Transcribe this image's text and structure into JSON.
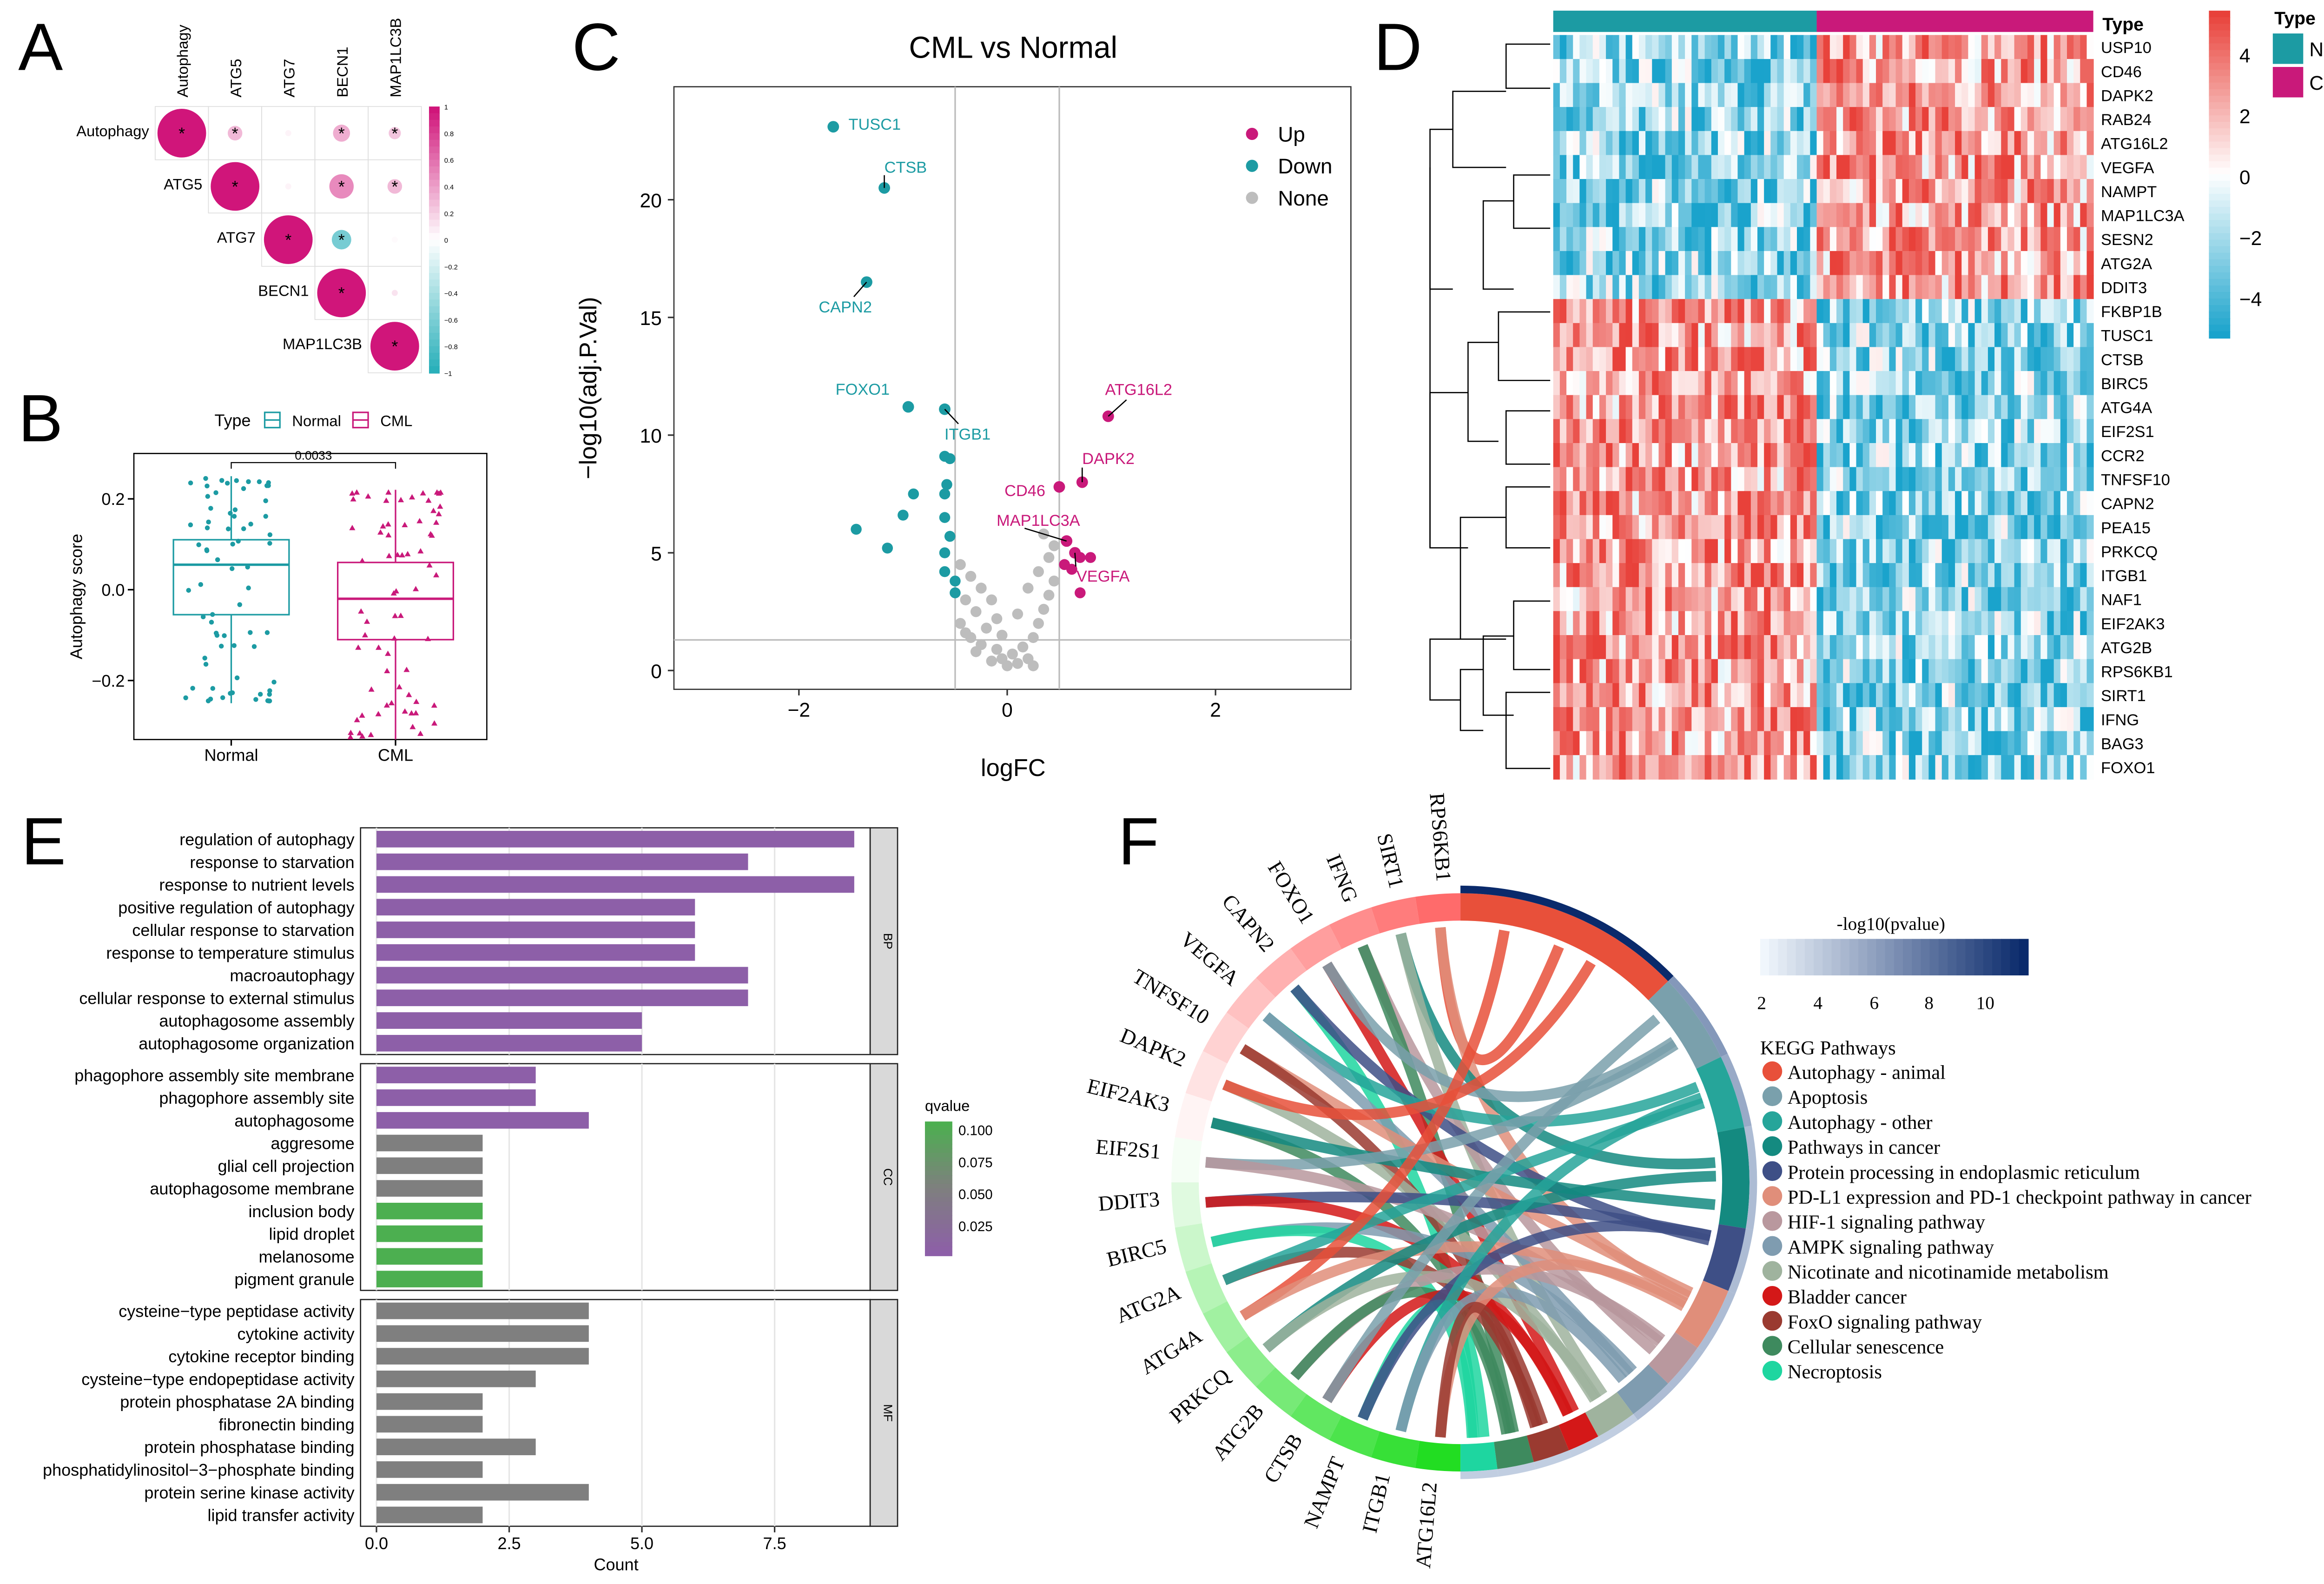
{
  "colors": {
    "normal": "#1c9ba3",
    "cml": "#c9197a",
    "none": "#bdbdbd",
    "bar_purple": "#8d5fa8",
    "bar_grey": "#7f7f7f",
    "bar_green": "#4caf50"
  },
  "panel_labels": [
    "A",
    "B",
    "C",
    "D",
    "E",
    "F"
  ],
  "chart_data": [
    {
      "panel": "A",
      "type": "heatmap",
      "title": "",
      "variables": [
        "Autophagy",
        "ATG5",
        "ATG7",
        "BECN1",
        "MAP1LC3B"
      ],
      "correlations": [
        [
          1,
          0.3,
          0.05,
          0.35,
          0.25
        ],
        [
          0.3,
          1,
          0.05,
          0.5,
          0.3
        ],
        [
          0.05,
          0.05,
          1,
          -0.4,
          0.02
        ],
        [
          0.35,
          0.5,
          -0.4,
          1,
          0.12
        ],
        [
          0.25,
          0.3,
          0.02,
          0.12,
          1
        ]
      ],
      "significant": [
        [
          1,
          1,
          0,
          1,
          1
        ],
        [
          1,
          1,
          0,
          1,
          1
        ],
        [
          0,
          0,
          1,
          1,
          0
        ],
        [
          1,
          1,
          1,
          1,
          0
        ],
        [
          1,
          1,
          0,
          0,
          1
        ]
      ],
      "colorbar_ticks": [
        "1",
        "0.8",
        "0.6",
        "0.4",
        "0.2",
        "0",
        "−0.2",
        "−0.4",
        "−0.6",
        "−0.8",
        "−1"
      ],
      "star": "*"
    },
    {
      "panel": "B",
      "type": "box",
      "legend_title": "Type",
      "legend": [
        "Normal",
        "CML"
      ],
      "categories": [
        "Normal",
        "CML"
      ],
      "ylabel": "Autophagy score",
      "yticks": [
        0.2,
        0.0,
        -0.2
      ],
      "ytick_labels": [
        "0.2",
        "0.0",
        "−0.2"
      ],
      "ylim": [
        -0.33,
        0.3
      ],
      "pvalue": "0.0033",
      "boxes": [
        {
          "name": "Normal",
          "min": -0.25,
          "q1": -0.055,
          "median": 0.055,
          "q3": 0.11,
          "max": 0.25
        },
        {
          "name": "CML",
          "min": -0.33,
          "q1": -0.11,
          "median": -0.02,
          "q3": 0.06,
          "max": 0.22
        }
      ]
    },
    {
      "panel": "C",
      "type": "scatter",
      "title": "CML vs Normal",
      "xlabel": "logFC",
      "ylabel": "−log10(adj.P.Val)",
      "xlim": [
        -3.2,
        3.3
      ],
      "ylim": [
        -0.8,
        24.8
      ],
      "xticks": [
        -2,
        0,
        2
      ],
      "xtick_labels": [
        "−2",
        "0",
        "2"
      ],
      "yticks": [
        0,
        5,
        10,
        15,
        20
      ],
      "ytick_labels": [
        "0",
        "5",
        "10",
        "15",
        "20"
      ],
      "vlines": [
        -0.5,
        0.5
      ],
      "hline": 1.3,
      "legend": [
        {
          "name": "Up",
          "color": "#c9197a"
        },
        {
          "name": "Down",
          "color": "#1c9ba3"
        },
        {
          "name": "None",
          "color": "#bdbdbd"
        }
      ],
      "labeled_points": [
        {
          "label": "TUSC1",
          "x": -1.67,
          "y": 23.1,
          "group": "Down"
        },
        {
          "label": "CTSB",
          "x": -1.18,
          "y": 20.5,
          "group": "Down"
        },
        {
          "label": "CAPN2",
          "x": -1.35,
          "y": 16.5,
          "group": "Down"
        },
        {
          "label": "FOXO1",
          "x": -0.95,
          "y": 11.2,
          "group": "Down"
        },
        {
          "label": "ITGB1",
          "x": -0.6,
          "y": 11.1,
          "group": "Down"
        },
        {
          "label": "ATG16L2",
          "x": 0.97,
          "y": 10.8,
          "group": "Up"
        },
        {
          "label": "CD46",
          "x": 0.5,
          "y": 7.8,
          "group": "Up"
        },
        {
          "label": "DAPK2",
          "x": 0.72,
          "y": 8.0,
          "group": "Up"
        },
        {
          "label": "MAP1LC3A",
          "x": 0.57,
          "y": 5.5,
          "group": "Up"
        },
        {
          "label": "VEGFA",
          "x": 0.65,
          "y": 5.0,
          "group": "Up"
        }
      ],
      "points": [
        {
          "x": -0.6,
          "y": 9.1,
          "group": "Down"
        },
        {
          "x": -0.55,
          "y": 9.0,
          "group": "Down"
        },
        {
          "x": -0.58,
          "y": 7.9,
          "group": "Down"
        },
        {
          "x": -0.6,
          "y": 7.5,
          "group": "Down"
        },
        {
          "x": -0.9,
          "y": 7.5,
          "group": "Down"
        },
        {
          "x": -1.0,
          "y": 6.6,
          "group": "Down"
        },
        {
          "x": -0.6,
          "y": 6.5,
          "group": "Down"
        },
        {
          "x": -1.45,
          "y": 6.0,
          "group": "Down"
        },
        {
          "x": -1.15,
          "y": 5.2,
          "group": "Down"
        },
        {
          "x": -0.55,
          "y": 5.7,
          "group": "Down"
        },
        {
          "x": -0.6,
          "y": 5.0,
          "group": "Down"
        },
        {
          "x": -0.6,
          "y": 4.2,
          "group": "Down"
        },
        {
          "x": -0.5,
          "y": 3.8,
          "group": "Down"
        },
        {
          "x": -0.5,
          "y": 3.3,
          "group": "Down"
        },
        {
          "x": 0.7,
          "y": 4.8,
          "group": "Up"
        },
        {
          "x": 0.62,
          "y": 4.3,
          "group": "Up"
        },
        {
          "x": 0.8,
          "y": 4.8,
          "group": "Up"
        },
        {
          "x": 0.7,
          "y": 3.3,
          "group": "Up"
        },
        {
          "x": 0.55,
          "y": 4.5,
          "group": "Up"
        },
        {
          "x": -0.45,
          "y": 4.5,
          "group": "None"
        },
        {
          "x": -0.35,
          "y": 4.0,
          "group": "None"
        },
        {
          "x": -0.25,
          "y": 3.5,
          "group": "None"
        },
        {
          "x": -0.4,
          "y": 3.0,
          "group": "None"
        },
        {
          "x": -0.15,
          "y": 3.0,
          "group": "None"
        },
        {
          "x": -0.3,
          "y": 2.5,
          "group": "None"
        },
        {
          "x": -0.1,
          "y": 2.2,
          "group": "None"
        },
        {
          "x": -0.45,
          "y": 2.0,
          "group": "None"
        },
        {
          "x": -0.2,
          "y": 1.8,
          "group": "None"
        },
        {
          "x": -0.05,
          "y": 1.5,
          "group": "None"
        },
        {
          "x": -0.35,
          "y": 1.4,
          "group": "None"
        },
        {
          "x": -0.25,
          "y": 1.1,
          "group": "None"
        },
        {
          "x": -0.1,
          "y": 0.9,
          "group": "None"
        },
        {
          "x": 0.05,
          "y": 0.7,
          "group": "None"
        },
        {
          "x": -0.05,
          "y": 0.5,
          "group": "None"
        },
        {
          "x": 0.1,
          "y": 0.3,
          "group": "None"
        },
        {
          "x": 0.2,
          "y": 0.5,
          "group": "None"
        },
        {
          "x": 0.15,
          "y": 1.0,
          "group": "None"
        },
        {
          "x": 0.25,
          "y": 1.4,
          "group": "None"
        },
        {
          "x": 0.3,
          "y": 2.0,
          "group": "None"
        },
        {
          "x": 0.35,
          "y": 2.6,
          "group": "None"
        },
        {
          "x": 0.4,
          "y": 3.2,
          "group": "None"
        },
        {
          "x": 0.45,
          "y": 3.8,
          "group": "None"
        },
        {
          "x": 0.3,
          "y": 4.2,
          "group": "None"
        },
        {
          "x": 0.4,
          "y": 4.8,
          "group": "None"
        },
        {
          "x": 0.45,
          "y": 5.3,
          "group": "None"
        },
        {
          "x": 0.35,
          "y": 5.8,
          "group": "None"
        },
        {
          "x": 0.2,
          "y": 3.5,
          "group": "None"
        },
        {
          "x": 0.1,
          "y": 2.4,
          "group": "None"
        },
        {
          "x": -0.15,
          "y": 0.4,
          "group": "None"
        },
        {
          "x": 0.0,
          "y": 0.2,
          "group": "None"
        },
        {
          "x": -0.3,
          "y": 0.8,
          "group": "None"
        },
        {
          "x": 0.25,
          "y": 0.2,
          "group": "None"
        },
        {
          "x": -0.4,
          "y": 1.6,
          "group": "None"
        }
      ]
    },
    {
      "panel": "D",
      "type": "heatmap",
      "annotation_title": "Type",
      "legend": [
        {
          "name": "Normal",
          "color": "#1c9ba3"
        },
        {
          "name": "CML",
          "color": "#c9197a"
        }
      ],
      "colorbar_ticks": [
        "4",
        "2",
        "0",
        "−2",
        "−4"
      ],
      "genes": [
        "USP10",
        "CD46",
        "DAPK2",
        "RAB24",
        "ATG16L2",
        "VEGFA",
        "NAMPT",
        "MAP1LC3A",
        "SESN2",
        "ATG2A",
        "DDIT3",
        "FKBP1B",
        "TUSC1",
        "CTSB",
        "BIRC5",
        "ATG4A",
        "EIF2S1",
        "CCR2",
        "TNFSF10",
        "CAPN2",
        "PEA15",
        "PRKCQ",
        "ITGB1",
        "NAF1",
        "EIF2AK3",
        "ATG2B",
        "RPS6KB1",
        "SIRT1",
        "IFNG",
        "BAG3",
        "FOXO1"
      ],
      "n_normal": 40,
      "n_cml": 42
    },
    {
      "panel": "E",
      "type": "bar",
      "xlabel": "Count",
      "xticks": [
        0,
        2.5,
        5,
        7.5
      ],
      "xtick_labels": [
        "0.0",
        "2.5",
        "5.0",
        "7.5"
      ],
      "xlim": [
        -0.3,
        9.3
      ],
      "legend_title": "qvalue",
      "legend_ticks": [
        "0.100",
        "0.075",
        "0.050",
        "0.025"
      ],
      "facets": [
        {
          "name": "BP",
          "terms": [
            {
              "label": "regulation of autophagy",
              "value": 9,
              "q": 0.01
            },
            {
              "label": "response to starvation",
              "value": 7,
              "q": 0.01
            },
            {
              "label": "response to nutrient levels",
              "value": 9,
              "q": 0.01
            },
            {
              "label": "positive regulation of autophagy",
              "value": 6,
              "q": 0.01
            },
            {
              "label": "cellular response to starvation",
              "value": 6,
              "q": 0.01
            },
            {
              "label": "response to temperature stimulus",
              "value": 6,
              "q": 0.01
            },
            {
              "label": "macroautophagy",
              "value": 7,
              "q": 0.01
            },
            {
              "label": "cellular response to external stimulus",
              "value": 7,
              "q": 0.01
            },
            {
              "label": "autophagosome assembly",
              "value": 5,
              "q": 0.01
            },
            {
              "label": "autophagosome organization",
              "value": 5,
              "q": 0.01
            }
          ]
        },
        {
          "name": "CC",
          "terms": [
            {
              "label": "phagophore assembly site membrane",
              "value": 3,
              "q": 0.01
            },
            {
              "label": "phagophore assembly site",
              "value": 3,
              "q": 0.01
            },
            {
              "label": "autophagosome",
              "value": 4,
              "q": 0.01
            },
            {
              "label": "aggresome",
              "value": 2,
              "q": 0.05
            },
            {
              "label": "glial cell projection",
              "value": 2,
              "q": 0.05
            },
            {
              "label": "autophagosome membrane",
              "value": 2,
              "q": 0.05
            },
            {
              "label": "inclusion body",
              "value": 2,
              "q": 0.1
            },
            {
              "label": "lipid droplet",
              "value": 2,
              "q": 0.1
            },
            {
              "label": "melanosome",
              "value": 2,
              "q": 0.1
            },
            {
              "label": "pigment granule",
              "value": 2,
              "q": 0.1
            }
          ]
        },
        {
          "name": "MF",
          "terms": [
            {
              "label": "cysteine−type peptidase activity",
              "value": 4,
              "q": 0.04
            },
            {
              "label": "cytokine activity",
              "value": 4,
              "q": 0.04
            },
            {
              "label": "cytokine receptor binding",
              "value": 4,
              "q": 0.04
            },
            {
              "label": "cysteine−type endopeptidase activity",
              "value": 3,
              "q": 0.04
            },
            {
              "label": "protein phosphatase 2A binding",
              "value": 2,
              "q": 0.04
            },
            {
              "label": "fibronectin binding",
              "value": 2,
              "q": 0.04
            },
            {
              "label": "protein phosphatase binding",
              "value": 3,
              "q": 0.04
            },
            {
              "label": "phosphatidylinositol−3−phosphate binding",
              "value": 2,
              "q": 0.04
            },
            {
              "label": "protein serine kinase activity",
              "value": 4,
              "q": 0.04
            },
            {
              "label": "lipid transfer activity",
              "value": 2,
              "q": 0.04
            }
          ]
        }
      ]
    },
    {
      "panel": "F",
      "type": "chord",
      "genes": [
        "RPS6KB1",
        "SIRT1",
        "IFNG",
        "FOXO1",
        "CAPN2",
        "VEGFA",
        "TNFSF10",
        "DAPK2",
        "EIF2AK3",
        "EIF2S1",
        "DDIT3",
        "BIRC5",
        "ATG2A",
        "ATG4A",
        "PRKCQ",
        "ATG2B",
        "CTSB",
        "NAMPT",
        "ITGB1",
        "ATG16L2"
      ],
      "colorbar_title": "-log10(pvalue)",
      "colorbar_ticks": [
        "2",
        "4",
        "6",
        "8",
        "10"
      ],
      "legend_title": "KEGG Pathways",
      "pathways": [
        {
          "name": "Autophagy - animal",
          "color": "#e8503a",
          "pvalue": 11
        },
        {
          "name": "Apoptosis",
          "color": "#7aa0ac",
          "pvalue": 5
        },
        {
          "name": "Autophagy - other",
          "color": "#26a59a",
          "pvalue": 4
        },
        {
          "name": "Pathways in cancer",
          "color": "#148a80",
          "pvalue": 3
        },
        {
          "name": "Protein processing in endoplasmic reticulum",
          "color": "#3e4f86",
          "pvalue": 3
        },
        {
          "name": "PD-L1 expression and PD-1 checkpoint pathway in cancer",
          "color": "#e08e7a",
          "pvalue": 3
        },
        {
          "name": "HIF-1 signaling pathway",
          "color": "#b9989e",
          "pvalue": 3
        },
        {
          "name": "AMPK signaling pathway",
          "color": "#7f9cb0",
          "pvalue": 3
        },
        {
          "name": "Nicotinate and nicotinamide metabolism",
          "color": "#9fb39e",
          "pvalue": 2
        },
        {
          "name": "Bladder cancer",
          "color": "#d41818",
          "pvalue": 2
        },
        {
          "name": "FoxO signaling pathway",
          "color": "#9a3a30",
          "pvalue": 2
        },
        {
          "name": "Cellular senescence",
          "color": "#3e8a5e",
          "pvalue": 2
        },
        {
          "name": "Necroptosis",
          "color": "#1ed6a0",
          "pvalue": 2
        }
      ]
    }
  ]
}
